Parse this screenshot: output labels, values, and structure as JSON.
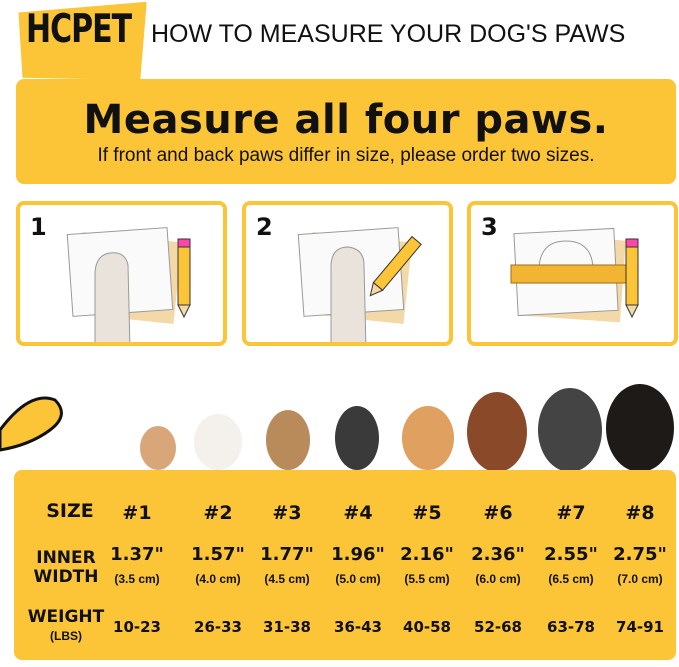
{
  "brand": "HCPET",
  "header": {
    "title": "HOW TO MEASURE YOUR DOG'S PAWS"
  },
  "banner": {
    "headline": "Measure all four paws.",
    "subtext": "If front and back paws differ in size, please order two sizes."
  },
  "steps": [
    {
      "number": "1",
      "icon": "paw-on-paper-icon"
    },
    {
      "number": "2",
      "icon": "trace-paw-with-pencil-icon"
    },
    {
      "number": "3",
      "icon": "ruler-measure-outline-icon"
    }
  ],
  "colors": {
    "accent": "#FCC437",
    "text": "#111111"
  },
  "size_table": {
    "labels": {
      "size": "SIZE",
      "inner_width_1": "INNER",
      "inner_width_2": "WIDTH",
      "weight": "WEIGHT",
      "weight_unit": "(LBS)"
    },
    "columns": [
      {
        "size": "#1",
        "inches": "1.37\"",
        "cm": "(3.5 cm)",
        "weight": "10-23"
      },
      {
        "size": "#2",
        "inches": "1.57\"",
        "cm": "(4.0 cm)",
        "weight": "26-33"
      },
      {
        "size": "#3",
        "inches": "1.77\"",
        "cm": "(4.5 cm)",
        "weight": "31-38"
      },
      {
        "size": "#4",
        "inches": "1.96\"",
        "cm": "(5.0 cm)",
        "weight": "36-43"
      },
      {
        "size": "#5",
        "inches": "2.16\"",
        "cm": "(5.5 cm)",
        "weight": "40-58"
      },
      {
        "size": "#6",
        "inches": "2.36\"",
        "cm": "(6.0 cm)",
        "weight": "52-68"
      },
      {
        "size": "#7",
        "inches": "2.55\"",
        "cm": "(6.5 cm)",
        "weight": "63-78"
      },
      {
        "size": "#8",
        "inches": "2.75\"",
        "cm": "(7.0 cm)",
        "weight": "74-91"
      }
    ]
  }
}
